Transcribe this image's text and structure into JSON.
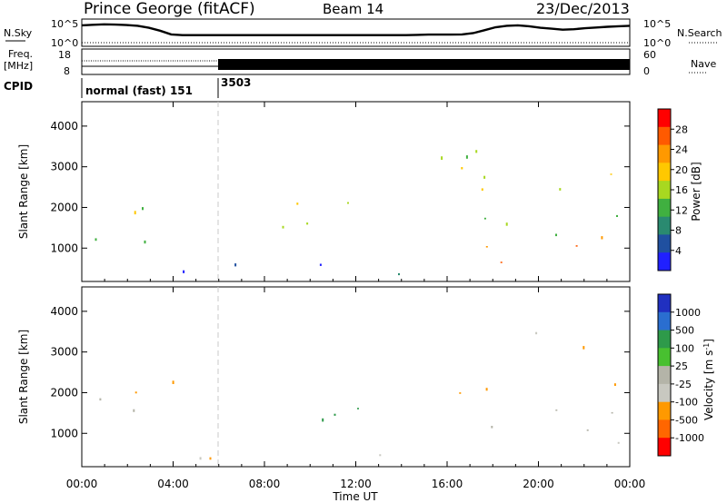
{
  "header": {
    "site": "Prince George (fitACF)",
    "beam": "Beam 14",
    "date": "23/Dec/2013"
  },
  "noise_panel": {
    "left_label": "N.Sky",
    "right_label": "N.Search",
    "left_ticks": [
      "10^5",
      "10^0"
    ],
    "right_ticks": [
      "10^5",
      "10^0"
    ],
    "sky_level": [
      0.82,
      0.84,
      0.86,
      0.85,
      0.83,
      0.8,
      0.72,
      0.6,
      0.45,
      0.42,
      0.42,
      0.42,
      0.42,
      0.42,
      0.42,
      0.42,
      0.42,
      0.42,
      0.42,
      0.42,
      0.42,
      0.42,
      0.42,
      0.42,
      0.42,
      0.42,
      0.42,
      0.42,
      0.42,
      0.42,
      0.43,
      0.44,
      0.44,
      0.44,
      0.45,
      0.5,
      0.62,
      0.74,
      0.8,
      0.82,
      0.78,
      0.72,
      0.68,
      0.64,
      0.66,
      0.7,
      0.73,
      0.76,
      0.78,
      0.8
    ]
  },
  "freq_panel": {
    "left_label_1": "Freq.",
    "left_label_2": "[MHz]",
    "right_label": "Nave",
    "left_ticks": [
      "18",
      "8"
    ],
    "right_ticks": [
      "60",
      "0"
    ]
  },
  "cpid": {
    "label": "CPID",
    "modes": [
      {
        "name": "normal (fast) 151",
        "start_hour": 0
      },
      {
        "name": "3503",
        "start_hour": 6.0
      }
    ]
  },
  "chart_data": [
    {
      "type": "heatmap",
      "quantity": "Power",
      "ylabel": "Slant Range [km]",
      "xlabel": "Time UT",
      "xlim_hours": [
        0,
        24
      ],
      "ylim_km": [
        180,
        4600
      ],
      "x_tick_labels": [
        "00:00",
        "04:00",
        "08:00",
        "12:00",
        "16:00",
        "20:00",
        "00:00"
      ],
      "y_ticks": [
        1000,
        2000,
        3000,
        4000
      ],
      "colorbar": {
        "label": "Power [dB]",
        "ticks": [
          "28",
          "24",
          "20",
          "16",
          "12",
          "8",
          "4"
        ],
        "colors": [
          "#ff0000",
          "#ff5a00",
          "#ff9900",
          "#ffc800",
          "#a8d820",
          "#40b040",
          "#2a8a70",
          "#2050a0",
          "#2020ff"
        ]
      },
      "regions": [
        {
          "t0": 0.2,
          "t1": 1.5,
          "r0": 800,
          "r1": 2900,
          "power": 14
        },
        {
          "t0": 1.5,
          "t1": 3.0,
          "r0": 800,
          "r1": 2400,
          "power": 12
        },
        {
          "t0": 2.2,
          "t1": 4.0,
          "r0": 1300,
          "r1": 2200,
          "power": 18
        },
        {
          "t0": 2.8,
          "t1": 16.0,
          "r0": 250,
          "r1": 650,
          "power": 6
        },
        {
          "t0": 8.5,
          "t1": 13.2,
          "r0": 1300,
          "r1": 2200,
          "power": 16
        },
        {
          "t0": 15.7,
          "t1": 23.9,
          "r0": 700,
          "r1": 3500,
          "power": 14
        },
        {
          "t0": 16.8,
          "t1": 23.7,
          "r0": 500,
          "r1": 1300,
          "power": 26
        }
      ]
    },
    {
      "type": "heatmap",
      "quantity": "Velocity",
      "ylabel": "Slant Range [km]",
      "xlabel": "Time UT",
      "xlim_hours": [
        0,
        24
      ],
      "ylim_km": [
        180,
        4600
      ],
      "x_tick_labels": [
        "00:00",
        "04:00",
        "08:00",
        "12:00",
        "16:00",
        "20:00",
        "00:00"
      ],
      "y_ticks": [
        1000,
        2000,
        3000,
        4000
      ],
      "colorbar": {
        "label": "Velocity [m s",
        "label_exp": "-1",
        "label_end": "]",
        "ticks": [
          "1000",
          "500",
          "100",
          "25",
          "-25",
          "-100",
          "-500",
          "-1000"
        ],
        "colors": [
          "#2030c0",
          "#2a6ed0",
          "#2e9a4a",
          "#48c030",
          "#b4b4a8",
          "#c8c8c0",
          "#ff9900",
          "#ff6600",
          "#ff0000"
        ]
      },
      "regions": [
        {
          "t0": 0.2,
          "t1": 2.5,
          "r0": 700,
          "r1": 2300,
          "vel": -10
        },
        {
          "t0": 1.5,
          "t1": 4.0,
          "r0": 1300,
          "r1": 2300,
          "vel": -150
        },
        {
          "t0": 0.3,
          "t1": 1.2,
          "r0": 2300,
          "r1": 2800,
          "vel": 120
        },
        {
          "t0": 3.0,
          "t1": 16.0,
          "r0": 250,
          "r1": 500,
          "vel": -80
        },
        {
          "t0": 8.5,
          "t1": 13.2,
          "r0": 1300,
          "r1": 2200,
          "vel": 150
        },
        {
          "t0": 16.0,
          "t1": 23.9,
          "r0": 500,
          "r1": 2000,
          "vel": 0
        },
        {
          "t0": 16.5,
          "t1": 23.5,
          "r0": 2000,
          "r1": 3500,
          "vel": -200
        }
      ]
    }
  ]
}
